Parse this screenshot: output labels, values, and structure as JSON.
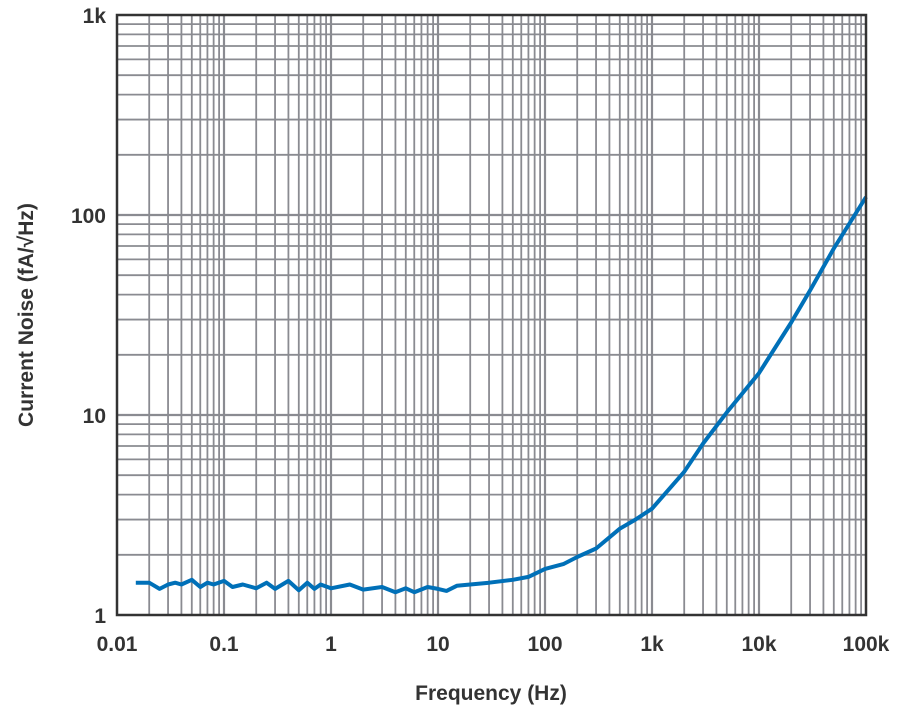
{
  "chart_data": {
    "type": "line",
    "title": "",
    "xlabel": "Frequency (Hz)",
    "ylabel": "Current Noise (fA/√Hz)",
    "xscale": "log",
    "yscale": "log",
    "xlim": [
      0.01,
      100000
    ],
    "ylim": [
      1,
      1000
    ],
    "grid": true,
    "x_ticks": [
      {
        "value": 0.01,
        "label": "0.01"
      },
      {
        "value": 0.1,
        "label": "0.1"
      },
      {
        "value": 1,
        "label": "1"
      },
      {
        "value": 10,
        "label": "10"
      },
      {
        "value": 100,
        "label": "100"
      },
      {
        "value": 1000,
        "label": "1k"
      },
      {
        "value": 10000,
        "label": "10k"
      },
      {
        "value": 100000,
        "label": "100k"
      }
    ],
    "y_ticks": [
      {
        "value": 1,
        "label": "1"
      },
      {
        "value": 10,
        "label": "10"
      },
      {
        "value": 100,
        "label": "100"
      },
      {
        "value": 1000,
        "label": "1k"
      }
    ],
    "series_color": "#0070b8",
    "grid_color": "#8a8b91",
    "x": [
      0.015,
      0.02,
      0.025,
      0.03,
      0.035,
      0.04,
      0.05,
      0.06,
      0.07,
      0.08,
      0.1,
      0.12,
      0.15,
      0.2,
      0.25,
      0.3,
      0.4,
      0.5,
      0.6,
      0.7,
      0.8,
      1,
      1.5,
      2,
      3,
      4,
      5,
      6,
      8,
      10,
      12,
      15,
      20,
      30,
      50,
      70,
      100,
      150,
      200,
      300,
      500,
      700,
      1000,
      2000,
      3000,
      5000,
      10000,
      20000,
      30000,
      50000,
      100000
    ],
    "y": [
      1.45,
      1.45,
      1.35,
      1.42,
      1.45,
      1.42,
      1.5,
      1.38,
      1.45,
      1.42,
      1.48,
      1.38,
      1.42,
      1.36,
      1.45,
      1.35,
      1.48,
      1.33,
      1.45,
      1.35,
      1.42,
      1.36,
      1.42,
      1.34,
      1.38,
      1.3,
      1.36,
      1.3,
      1.38,
      1.35,
      1.32,
      1.4,
      1.42,
      1.45,
      1.5,
      1.55,
      1.7,
      1.8,
      1.95,
      2.15,
      2.7,
      3.0,
      3.4,
      5.2,
      7.2,
      10.3,
      16.2,
      29,
      42,
      68,
      123
    ]
  }
}
